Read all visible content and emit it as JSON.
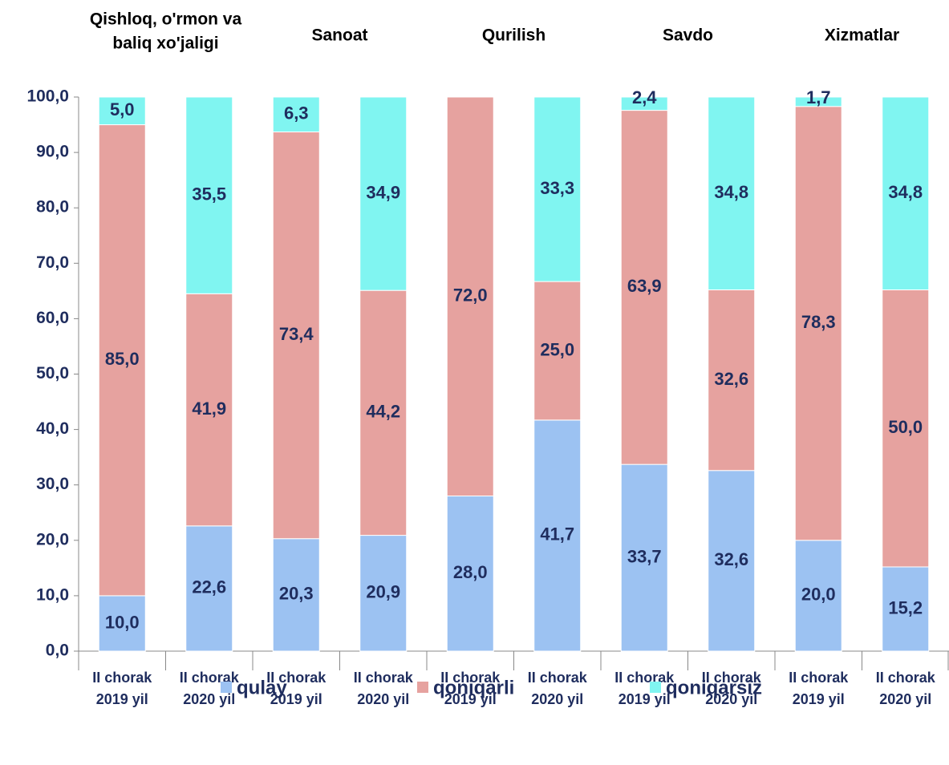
{
  "chart_data": {
    "type": "stacked_bar",
    "groups": [
      [
        "Qishloq, o'rmon va",
        "baliq xo'jaligi"
      ],
      [
        "Sanoat"
      ],
      [
        "Qurilish"
      ],
      [
        "Savdo"
      ],
      [
        "Xizmatlar"
      ]
    ],
    "categories": [
      [
        "II chorak",
        "2019 yil"
      ],
      [
        "II chorak",
        "2020 yil"
      ],
      [
        "II chorak",
        "2019 yil"
      ],
      [
        "II chorak",
        "2020 yil"
      ],
      [
        "II chorak",
        "2019 yil"
      ],
      [
        "II chorak",
        "2020 yil"
      ],
      [
        "II chorak",
        "2019 yil"
      ],
      [
        "II chorak",
        "2020 yil"
      ],
      [
        "II chorak",
        "2019 yil"
      ],
      [
        "II chorak",
        "2020 yil"
      ]
    ],
    "series": [
      {
        "name": "qulay",
        "color": "#9cc2f2",
        "values": [
          10.0,
          22.6,
          20.3,
          20.9,
          28.0,
          41.7,
          33.7,
          32.6,
          20.0,
          15.2
        ],
        "value_labels": [
          "10,0",
          "22,6",
          "20,3",
          "20,9",
          "28,0",
          "41,7",
          "33,7",
          "32,6",
          "20,0",
          "15,2"
        ]
      },
      {
        "name": "qoniqarli",
        "color": "#e6a29f",
        "values": [
          85.0,
          41.9,
          73.4,
          44.2,
          72.0,
          25.0,
          63.9,
          32.6,
          78.3,
          50.0
        ],
        "value_labels": [
          "85,0",
          "41,9",
          "73,4",
          "44,2",
          "72,0",
          "25,0",
          "63,9",
          "32,6",
          "78,3",
          "50,0"
        ]
      },
      {
        "name": "qoniqarsiz",
        "color": "#80f5f1",
        "values": [
          5.0,
          35.5,
          6.3,
          34.9,
          null,
          33.3,
          2.4,
          34.8,
          1.7,
          34.8
        ],
        "value_labels": [
          "5,0",
          "35,5",
          "6,3",
          "34,9",
          null,
          "33,3",
          "2,4",
          "34,8",
          "1,7",
          "34,8"
        ]
      }
    ],
    "ylim": [
      0,
      100
    ],
    "yticks": [
      {
        "value": 0,
        "label": "0,0"
      },
      {
        "value": 10,
        "label": "10,0"
      },
      {
        "value": 20,
        "label": "20,0"
      },
      {
        "value": 30,
        "label": "30,0"
      },
      {
        "value": 40,
        "label": "40,0"
      },
      {
        "value": 50,
        "label": "50,0"
      },
      {
        "value": 60,
        "label": "60,0"
      },
      {
        "value": 70,
        "label": "70,0"
      },
      {
        "value": 80,
        "label": "80,0"
      },
      {
        "value": 90,
        "label": "90,0"
      },
      {
        "value": 100,
        "label": "100,0"
      }
    ],
    "legend": "bottom"
  }
}
